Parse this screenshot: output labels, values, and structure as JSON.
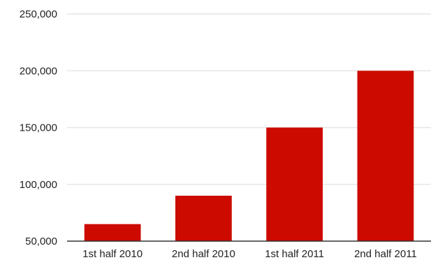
{
  "chart_data": {
    "type": "bar",
    "title": "",
    "xlabel": "",
    "ylabel": "",
    "categories": [
      "1st half 2010",
      "2nd half 2010",
      "1st half 2011",
      "2nd half 2011"
    ],
    "values": [
      65000,
      90000,
      150000,
      200000
    ],
    "ylim": [
      50000,
      250000
    ],
    "yticks": [
      50000,
      100000,
      150000,
      200000,
      250000
    ],
    "ytick_labels": [
      "50,000",
      "100,000",
      "150,000",
      "200,000",
      "250,000"
    ],
    "grid": true,
    "legend": "none",
    "bar_color": "#cc0a00",
    "grid_color": "#e6e6e6",
    "axis_color": "#333333"
  }
}
